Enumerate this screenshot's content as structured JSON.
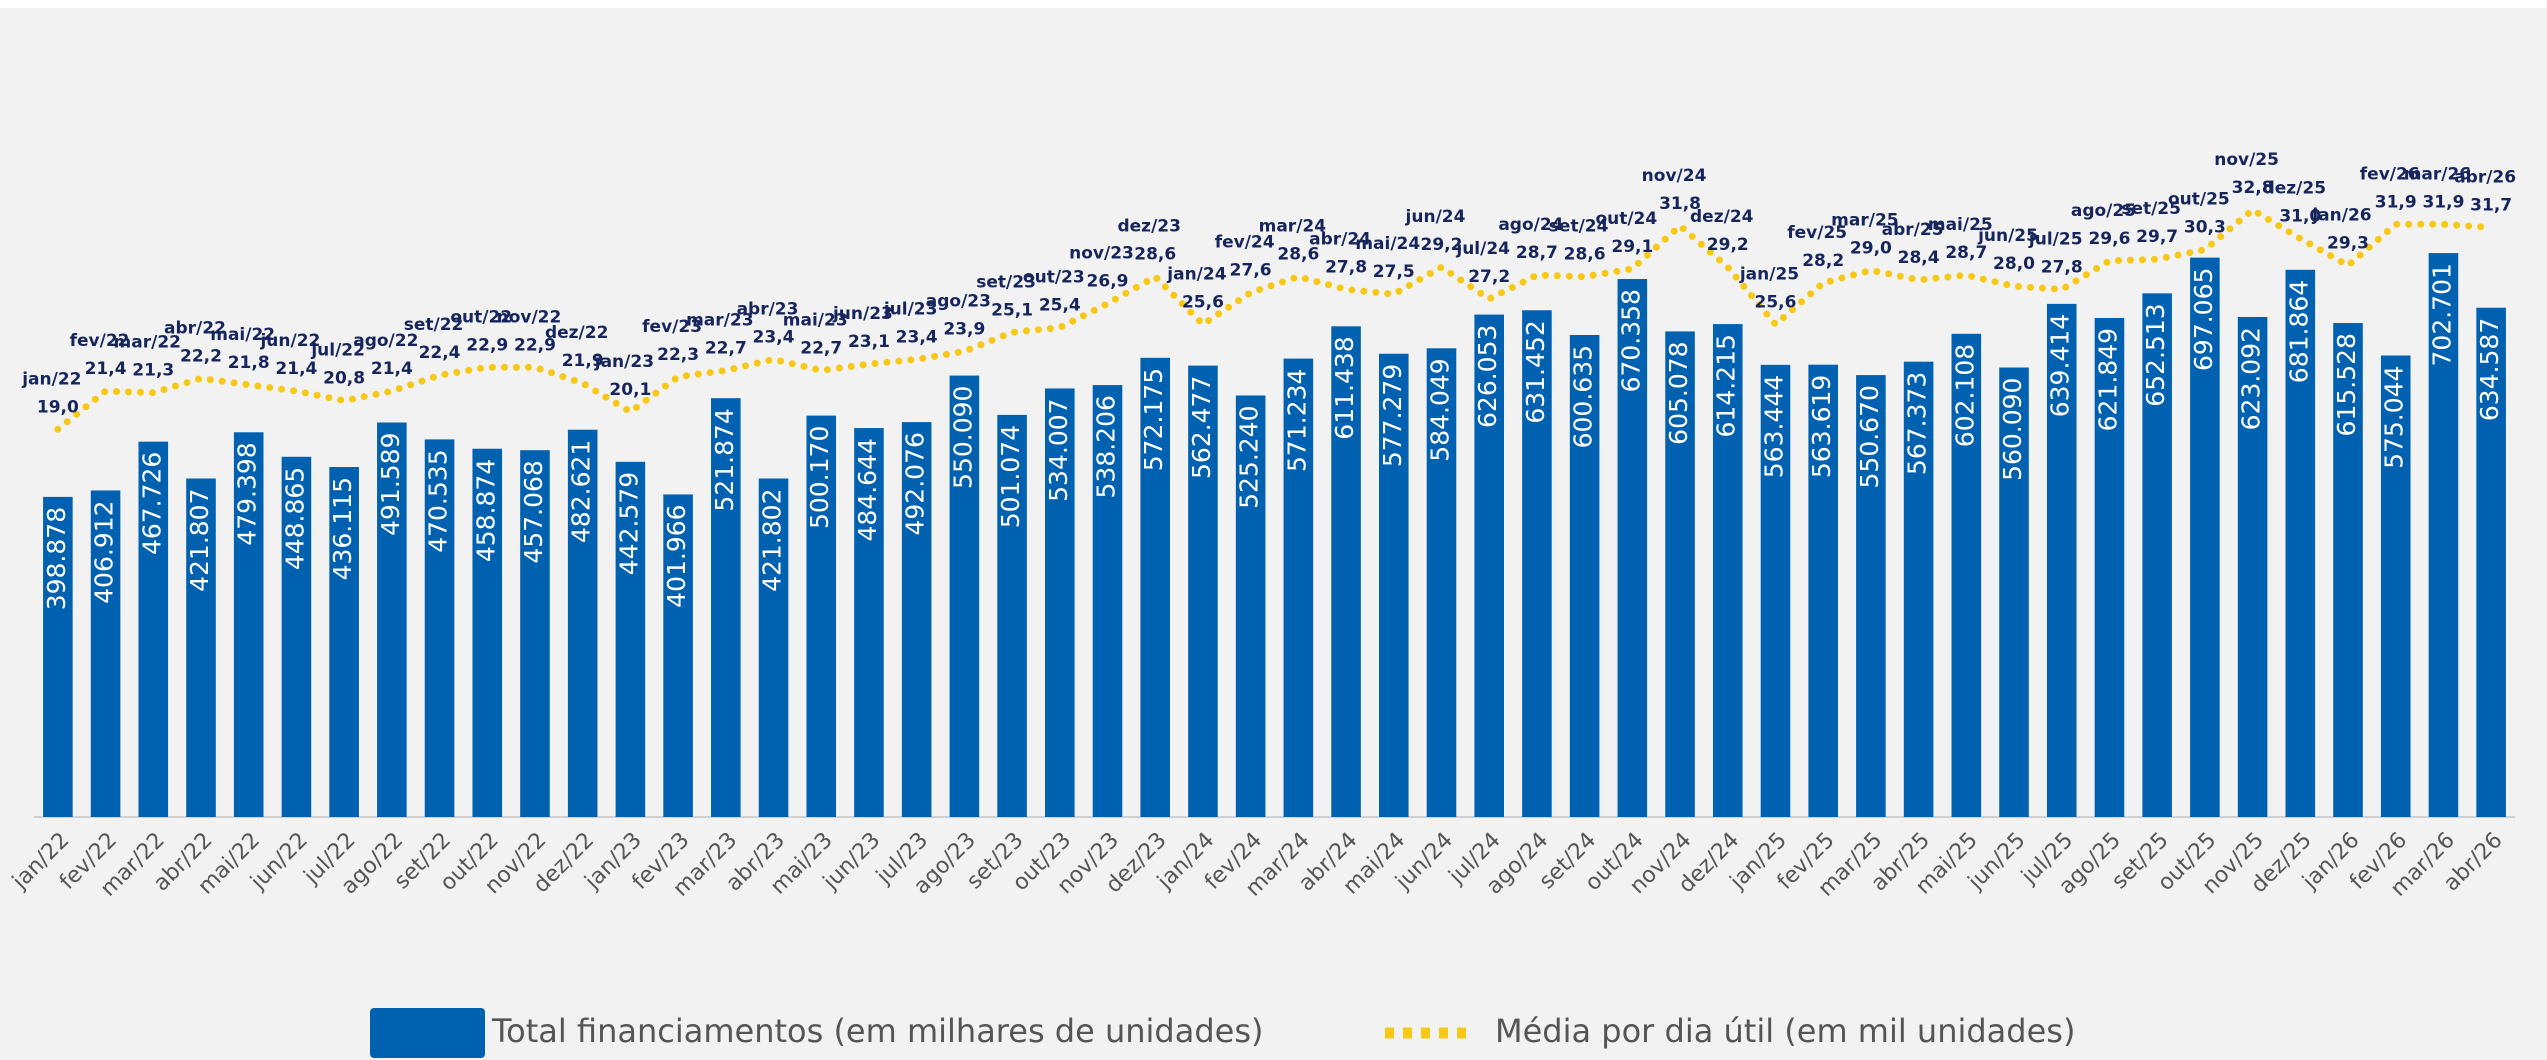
{
  "chart_data": {
    "type": "bar",
    "categories": [
      "jan/22",
      "fev/22",
      "mar/22",
      "abr/22",
      "mai/22",
      "jun/22",
      "jul/22",
      "ago/22",
      "set/22",
      "out/22",
      "nov/22",
      "dez/22",
      "jan/23",
      "fev/23",
      "mar/23",
      "abr/23",
      "mai/23",
      "jun/23",
      "jul/23",
      "ago/23",
      "set/23",
      "out/23",
      "nov/23",
      "dez/23",
      "jan/24",
      "fev/24",
      "mar/24",
      "abr/24",
      "mai/24",
      "jun/24",
      "jul/24",
      "ago/24",
      "set/24",
      "out/24",
      "nov/24",
      "dez/24",
      "jan/25",
      "fev/25",
      "mar/25",
      "abr/25",
      "mai/25",
      "jun/25",
      "jul/25",
      "ago/25",
      "set/25",
      "out/25",
      "nov/25",
      "dez/25",
      "jan/26",
      "fev/26",
      "mar/26",
      "abr/26"
    ],
    "series": [
      {
        "name": "Total financiamentos (em milhares de unidades)",
        "color": "#0061b0",
        "values": [
          398878,
          406912,
          467726,
          421807,
          479398,
          448865,
          436115,
          491589,
          470535,
          458874,
          457068,
          482621,
          442579,
          401966,
          521874,
          421802,
          500170,
          484644,
          492076,
          550090,
          501074,
          534007,
          538206,
          572175,
          562477,
          525240,
          571234,
          611438,
          577279,
          584049,
          626053,
          631452,
          600635,
          670358,
          605078,
          614215,
          563444,
          563619,
          550670,
          567373,
          602108,
          560090,
          639414,
          621849,
          652513,
          697065,
          623092,
          681864,
          615528,
          575044,
          702701,
          634587
        ],
        "value_labels": [
          "398.878",
          "406.912",
          "467.726",
          "421.807",
          "479.398",
          "448.865",
          "436.115",
          "491.589",
          "470.535",
          "458.874",
          "457.068",
          "482.621",
          "442.579",
          "401.966",
          "521.874",
          "421.802",
          "500.170",
          "484.644",
          "492.076",
          "550.090",
          "501.074",
          "534.007",
          "538.206",
          "572.175",
          "562.477",
          "525.240",
          "571.234",
          "611.438",
          "577.279",
          "584.049",
          "626.053",
          "631.452",
          "600.635",
          "670.358",
          "605.078",
          "614.215",
          "563.444",
          "563.619",
          "550.670",
          "567.373",
          "602.108",
          "560.090",
          "639.414",
          "621.849",
          "652.513",
          "697.065",
          "623.092",
          "681.864",
          "615.528",
          "575.044",
          "702.701",
          "634.587"
        ]
      },
      {
        "name": "Média por dia útil (em mil unidades)",
        "color": "#f7c815",
        "type": "line",
        "axis": "y2",
        "values": [
          19.0,
          21.4,
          21.3,
          22.2,
          21.8,
          21.4,
          20.8,
          21.4,
          22.4,
          22.9,
          22.9,
          21.9,
          20.1,
          22.3,
          22.7,
          23.4,
          22.7,
          23.1,
          23.4,
          23.9,
          25.1,
          25.4,
          26.9,
          28.6,
          25.6,
          27.6,
          28.6,
          27.8,
          27.5,
          29.2,
          27.2,
          28.7,
          28.6,
          29.1,
          31.8,
          29.2,
          25.6,
          28.2,
          29.0,
          28.4,
          28.7,
          28.0,
          27.8,
          29.6,
          29.7,
          30.3,
          32.8,
          31.0,
          29.3,
          31.9,
          31.9,
          31.7
        ],
        "value_labels": [
          "19,0",
          "21,4",
          "21,3",
          "22,2",
          "21,8",
          "21,4",
          "20,8",
          "21,4",
          "22,4",
          "22,9",
          "22,9",
          "21,9",
          "20,1",
          "22,3",
          "22,7",
          "23,4",
          "22,7",
          "23,1",
          "23,4",
          "23,9",
          "25,1",
          "25,4",
          "26,9",
          "28,6",
          "25,6",
          "27,6",
          "28,6",
          "27,8",
          "27,5",
          "29,2",
          "27,2",
          "28,7",
          "28,6",
          "29,1",
          "31,8",
          "29,2",
          "25,6",
          "28,2",
          "29,0",
          "28,4",
          "28,7",
          "28,0",
          "27,8",
          "29,6",
          "29,7",
          "30,3",
          "32,8",
          "31,0",
          "29,3",
          "31,9",
          "31,9",
          "31,7"
        ]
      }
    ],
    "ylim": [
      0,
      800000
    ],
    "y2lim": [
      -5.4,
      35
    ]
  }
}
